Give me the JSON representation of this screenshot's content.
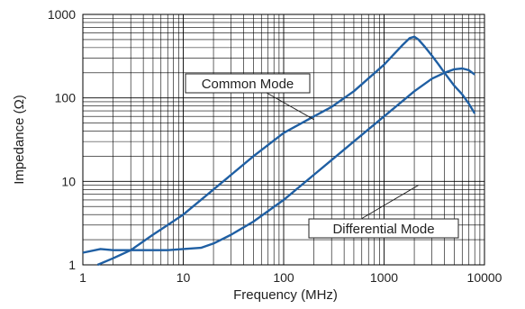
{
  "chart_data": {
    "type": "line",
    "xscale": "log",
    "yscale": "log",
    "xlim": [
      1,
      10000
    ],
    "ylim": [
      1,
      1000
    ],
    "grid": true,
    "xlabel": "Frequency (MHz)",
    "ylabel": "Impedance (Ω)",
    "x_ticks": [
      {
        "value": 1,
        "label": "1"
      },
      {
        "value": 10,
        "label": "10"
      },
      {
        "value": 100,
        "label": "100"
      },
      {
        "value": 1000,
        "label": "1000"
      },
      {
        "value": 10000,
        "label": "10000"
      }
    ],
    "y_ticks": [
      {
        "value": 1,
        "label": "1"
      },
      {
        "value": 10,
        "label": "10"
      },
      {
        "value": 100,
        "label": "100"
      },
      {
        "value": 1000,
        "label": "1000"
      }
    ],
    "series": [
      {
        "name": "Common Mode",
        "color": "#1f5fa3",
        "x": [
          1.4,
          2,
          3,
          5,
          7,
          10,
          20,
          30,
          50,
          100,
          200,
          300,
          500,
          1000,
          1500,
          1800,
          2000,
          2200,
          2500,
          3000,
          3500,
          4000,
          5000,
          6000,
          7000,
          8000
        ],
        "y": [
          1.0,
          1.2,
          1.5,
          2.3,
          3.0,
          4.0,
          8.0,
          12,
          20,
          38,
          60,
          78,
          120,
          250,
          420,
          520,
          540,
          500,
          420,
          320,
          250,
          200,
          140,
          110,
          85,
          65
        ]
      },
      {
        "name": "Differential Mode",
        "color": "#1f5fa3",
        "x": [
          1,
          1.5,
          2,
          3,
          5,
          7,
          10,
          15,
          20,
          30,
          50,
          100,
          200,
          300,
          500,
          1000,
          2000,
          3000,
          4000,
          5000,
          6000,
          7000,
          8000
        ],
        "y": [
          1.4,
          1.55,
          1.5,
          1.5,
          1.5,
          1.5,
          1.55,
          1.6,
          1.8,
          2.3,
          3.3,
          6.0,
          12,
          18,
          30,
          60,
          120,
          170,
          200,
          220,
          225,
          215,
          190
        ]
      }
    ],
    "annotations": [
      {
        "text": "Common Mode",
        "series": "Common Mode",
        "x": 200,
        "y": 55
      },
      {
        "text": "Differential Mode",
        "series": "Differential Mode",
        "x": 2200,
        "y": 9
      }
    ]
  }
}
